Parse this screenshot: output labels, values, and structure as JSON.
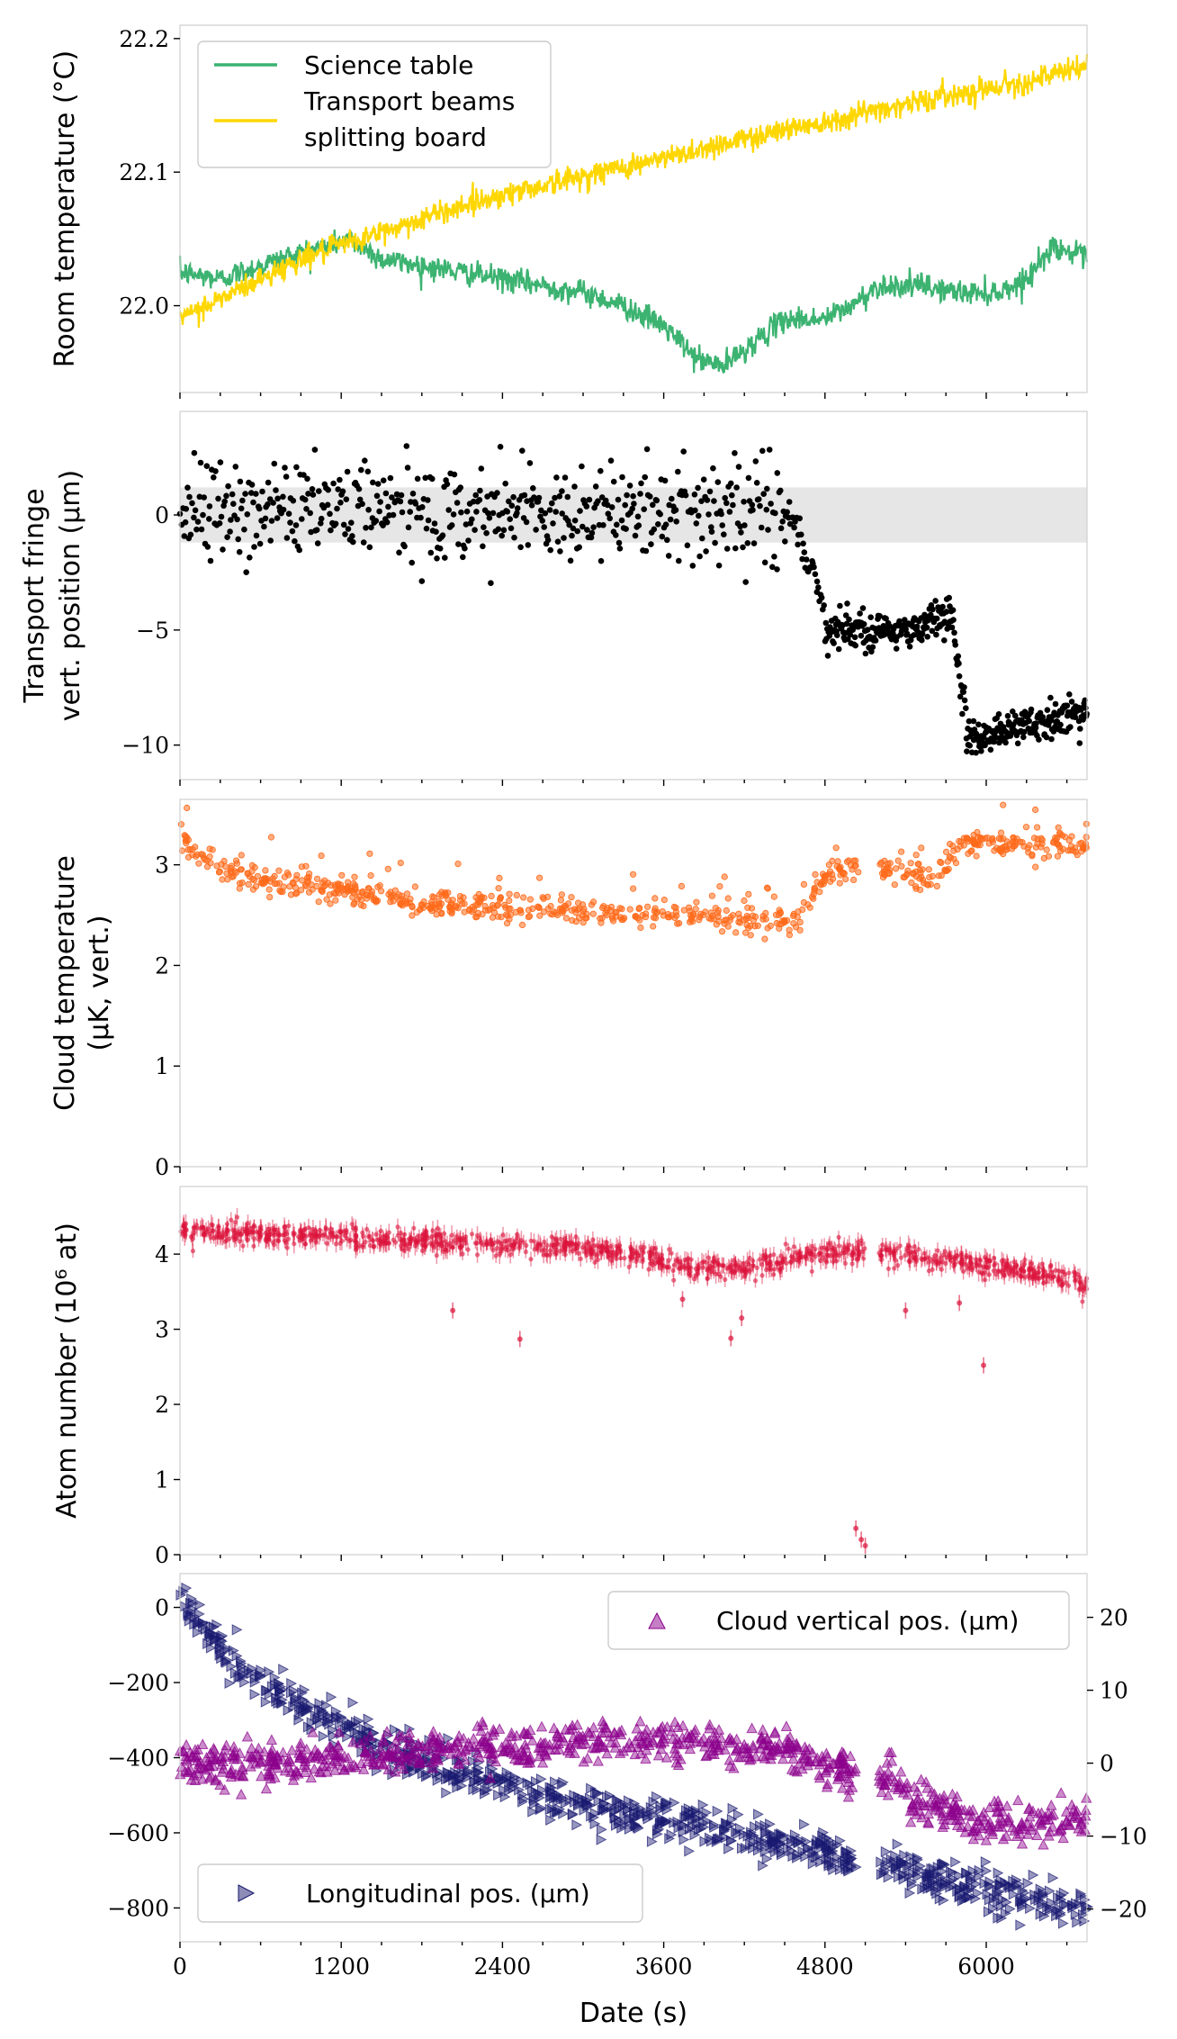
{
  "chart_data": [
    {
      "type": "line",
      "ylabel": "Room temperature (°C)",
      "xlim": [
        0,
        6750
      ],
      "ylim": [
        21.935,
        22.21
      ],
      "yticks": [
        22.0,
        22.1,
        22.2
      ],
      "ytick_labels": [
        "22.0",
        "22.1",
        "22.2"
      ],
      "legend": "top-left",
      "series": [
        {
          "name": "Science table",
          "color": "#3cb371",
          "x": [
            0,
            300,
            600,
            900,
            1100,
            1250,
            1500,
            1800,
            2100,
            2400,
            2700,
            3000,
            3300,
            3600,
            3850,
            4050,
            4300,
            4500,
            4800,
            5000,
            5200,
            5500,
            5800,
            6100,
            6300,
            6500,
            6750
          ],
          "y": [
            22.025,
            22.02,
            22.03,
            22.04,
            22.045,
            22.05,
            22.035,
            22.03,
            22.025,
            22.02,
            22.015,
            22.01,
            22.0,
            21.985,
            21.96,
            21.955,
            21.975,
            21.99,
            21.99,
            22.0,
            22.015,
            22.015,
            22.01,
            22.01,
            22.02,
            22.045,
            22.035
          ]
        },
        {
          "name": "Transport beams splitting board",
          "color": "#ffd700",
          "x": [
            0,
            300,
            600,
            900,
            1200,
            1500,
            1800,
            2100,
            2400,
            2700,
            3000,
            3300,
            3600,
            3900,
            4200,
            4500,
            4800,
            5100,
            5400,
            5700,
            6000,
            6300,
            6600,
            6750
          ],
          "y": [
            21.99,
            22.005,
            22.02,
            22.035,
            22.045,
            22.055,
            22.065,
            22.075,
            22.083,
            22.09,
            22.097,
            22.104,
            22.11,
            22.118,
            22.125,
            22.132,
            22.138,
            22.145,
            22.151,
            22.157,
            22.163,
            22.168,
            22.175,
            22.18
          ]
        }
      ]
    },
    {
      "type": "scatter",
      "ylabel": "Transport fringe vert. position (µm)",
      "xlim": [
        0,
        6750
      ],
      "ylim": [
        -11.5,
        4.5
      ],
      "yticks": [
        0,
        -5,
        -10
      ],
      "ytick_labels": [
        "0",
        "−5",
        "−10"
      ],
      "band": [
        -1.2,
        1.2
      ],
      "band_color": "#e6e6e6",
      "series": [
        {
          "color": "#000000",
          "segments": [
            {
              "x0": 0,
              "x1": 4550,
              "level": 0.2,
              "spread": 1.3,
              "n": 520
            },
            {
              "x0": 4550,
              "x1": 4800,
              "level_start": 0.2,
              "level_end": -4.2,
              "spread": 0.6,
              "n": 30
            },
            {
              "x0": 4800,
              "x1": 5550,
              "level": -5.0,
              "spread": 0.5,
              "n": 150
            },
            {
              "x0": 5550,
              "x1": 5750,
              "level": -4.4,
              "spread": 0.5,
              "n": 40
            },
            {
              "x0": 5750,
              "x1": 5850,
              "level_start": -4.5,
              "level_end": -9.2,
              "spread": 0.5,
              "n": 20
            },
            {
              "x0": 5850,
              "x1": 6750,
              "level_start": -9.6,
              "level_end": -8.6,
              "spread": 0.5,
              "n": 190
            }
          ]
        }
      ]
    },
    {
      "type": "scatter",
      "ylabel": "Cloud temperature (µK, vert.)",
      "xlim": [
        0,
        6750
      ],
      "ylim": [
        0,
        3.65
      ],
      "yticks": [
        0,
        1,
        2,
        3
      ],
      "ytick_labels": [
        "0",
        "1",
        "2",
        "3"
      ],
      "series": [
        {
          "color": "#ff6a1a",
          "x": [
            0,
            300,
            800,
            1300,
            1800,
            2300,
            2800,
            3300,
            3800,
            4300,
            4600,
            4800,
            5000,
            5200,
            5400,
            5600,
            5800,
            6000,
            6300,
            6750
          ],
          "y": [
            3.25,
            2.95,
            2.8,
            2.72,
            2.62,
            2.58,
            2.55,
            2.52,
            2.5,
            2.45,
            2.45,
            2.88,
            2.98,
            3.0,
            2.92,
            2.85,
            3.2,
            3.25,
            3.18,
            3.2
          ],
          "gaps": [
            [
              5050,
              5200
            ]
          ]
        }
      ]
    },
    {
      "type": "scatter",
      "ylabel": "Atom number (10⁶ at)",
      "xlim": [
        0,
        6750
      ],
      "ylim": [
        0,
        4.9
      ],
      "yticks": [
        0,
        1,
        2,
        3,
        4
      ],
      "ytick_labels": [
        "0",
        "1",
        "2",
        "3",
        "4"
      ],
      "series": [
        {
          "color": "#dc143c",
          "x": [
            0,
            1000,
            2000,
            3000,
            3400,
            3700,
            4200,
            4700,
            5050,
            5200,
            5500,
            6000,
            6400,
            6750
          ],
          "y": [
            4.3,
            4.25,
            4.15,
            4.1,
            4.0,
            3.85,
            3.8,
            4.0,
            4.05,
            4.0,
            3.95,
            3.85,
            3.75,
            3.6
          ],
          "gaps": [
            [
              5100,
              5200
            ]
          ],
          "outliers": [
            [
              2030,
              3.25
            ],
            [
              2530,
              2.87
            ],
            [
              3740,
              3.4
            ],
            [
              4100,
              2.88
            ],
            [
              4180,
              3.15
            ],
            [
              5400,
              3.25
            ],
            [
              5800,
              3.35
            ],
            [
              5980,
              2.52
            ],
            [
              5030,
              0.35
            ],
            [
              5070,
              0.2
            ],
            [
              5100,
              0.12
            ]
          ]
        }
      ]
    },
    {
      "type": "scatter",
      "xlabel": "Date (s)",
      "xlim": [
        0,
        6750
      ],
      "xticks": [
        0,
        1200,
        2400,
        3600,
        4800,
        6000
      ],
      "xtick_labels": [
        "0",
        "1200",
        "2400",
        "3600",
        "4800",
        "6000"
      ],
      "ylim": [
        -890,
        90
      ],
      "yticks": [
        0,
        -200,
        -400,
        -600,
        -800
      ],
      "ytick_labels": [
        "0",
        "−200",
        "−400",
        "−600",
        "−800"
      ],
      "y2lim": [
        -24.5,
        26.0
      ],
      "y2ticks": [
        20,
        10,
        0,
        -10,
        -20
      ],
      "y2tick_labels": [
        "20",
        "10",
        "0",
        "−10",
        "−20"
      ],
      "series": [
        {
          "name": "Cloud vertical pos. (µm)",
          "axis": "right",
          "marker": "triangle-up",
          "color": "#8b008b",
          "legend": "top-right",
          "x": [
            0,
            600,
            1200,
            1800,
            2400,
            3000,
            3600,
            4200,
            4600,
            4800,
            5000,
            5200,
            5500,
            6000,
            6400,
            6750
          ],
          "y": [
            0,
            0,
            0.5,
            1.5,
            2.5,
            3.0,
            3.0,
            2.5,
            1.5,
            -0.5,
            -1.5,
            -1.5,
            -5.5,
            -8.0,
            -8.0,
            -7.5
          ],
          "gaps": [
            [
              5030,
              5200
            ]
          ]
        },
        {
          "name": "Longitudinal pos. (µm)",
          "axis": "left",
          "marker": "triangle-right",
          "color": "#191970",
          "legend": "bottom-left",
          "x": [
            0,
            150,
            300,
            500,
            800,
            1200,
            1600,
            2000,
            2400,
            2800,
            3200,
            3600,
            4000,
            4400,
            4800,
            5000,
            5200,
            5500,
            6000,
            6400,
            6750
          ],
          "y": [
            40,
            -50,
            -110,
            -170,
            -240,
            -310,
            -380,
            -430,
            -470,
            -510,
            -540,
            -560,
            -590,
            -620,
            -650,
            -670,
            -680,
            -720,
            -750,
            -780,
            -800
          ],
          "gaps": [
            [
              5030,
              5200
            ]
          ]
        }
      ]
    }
  ]
}
